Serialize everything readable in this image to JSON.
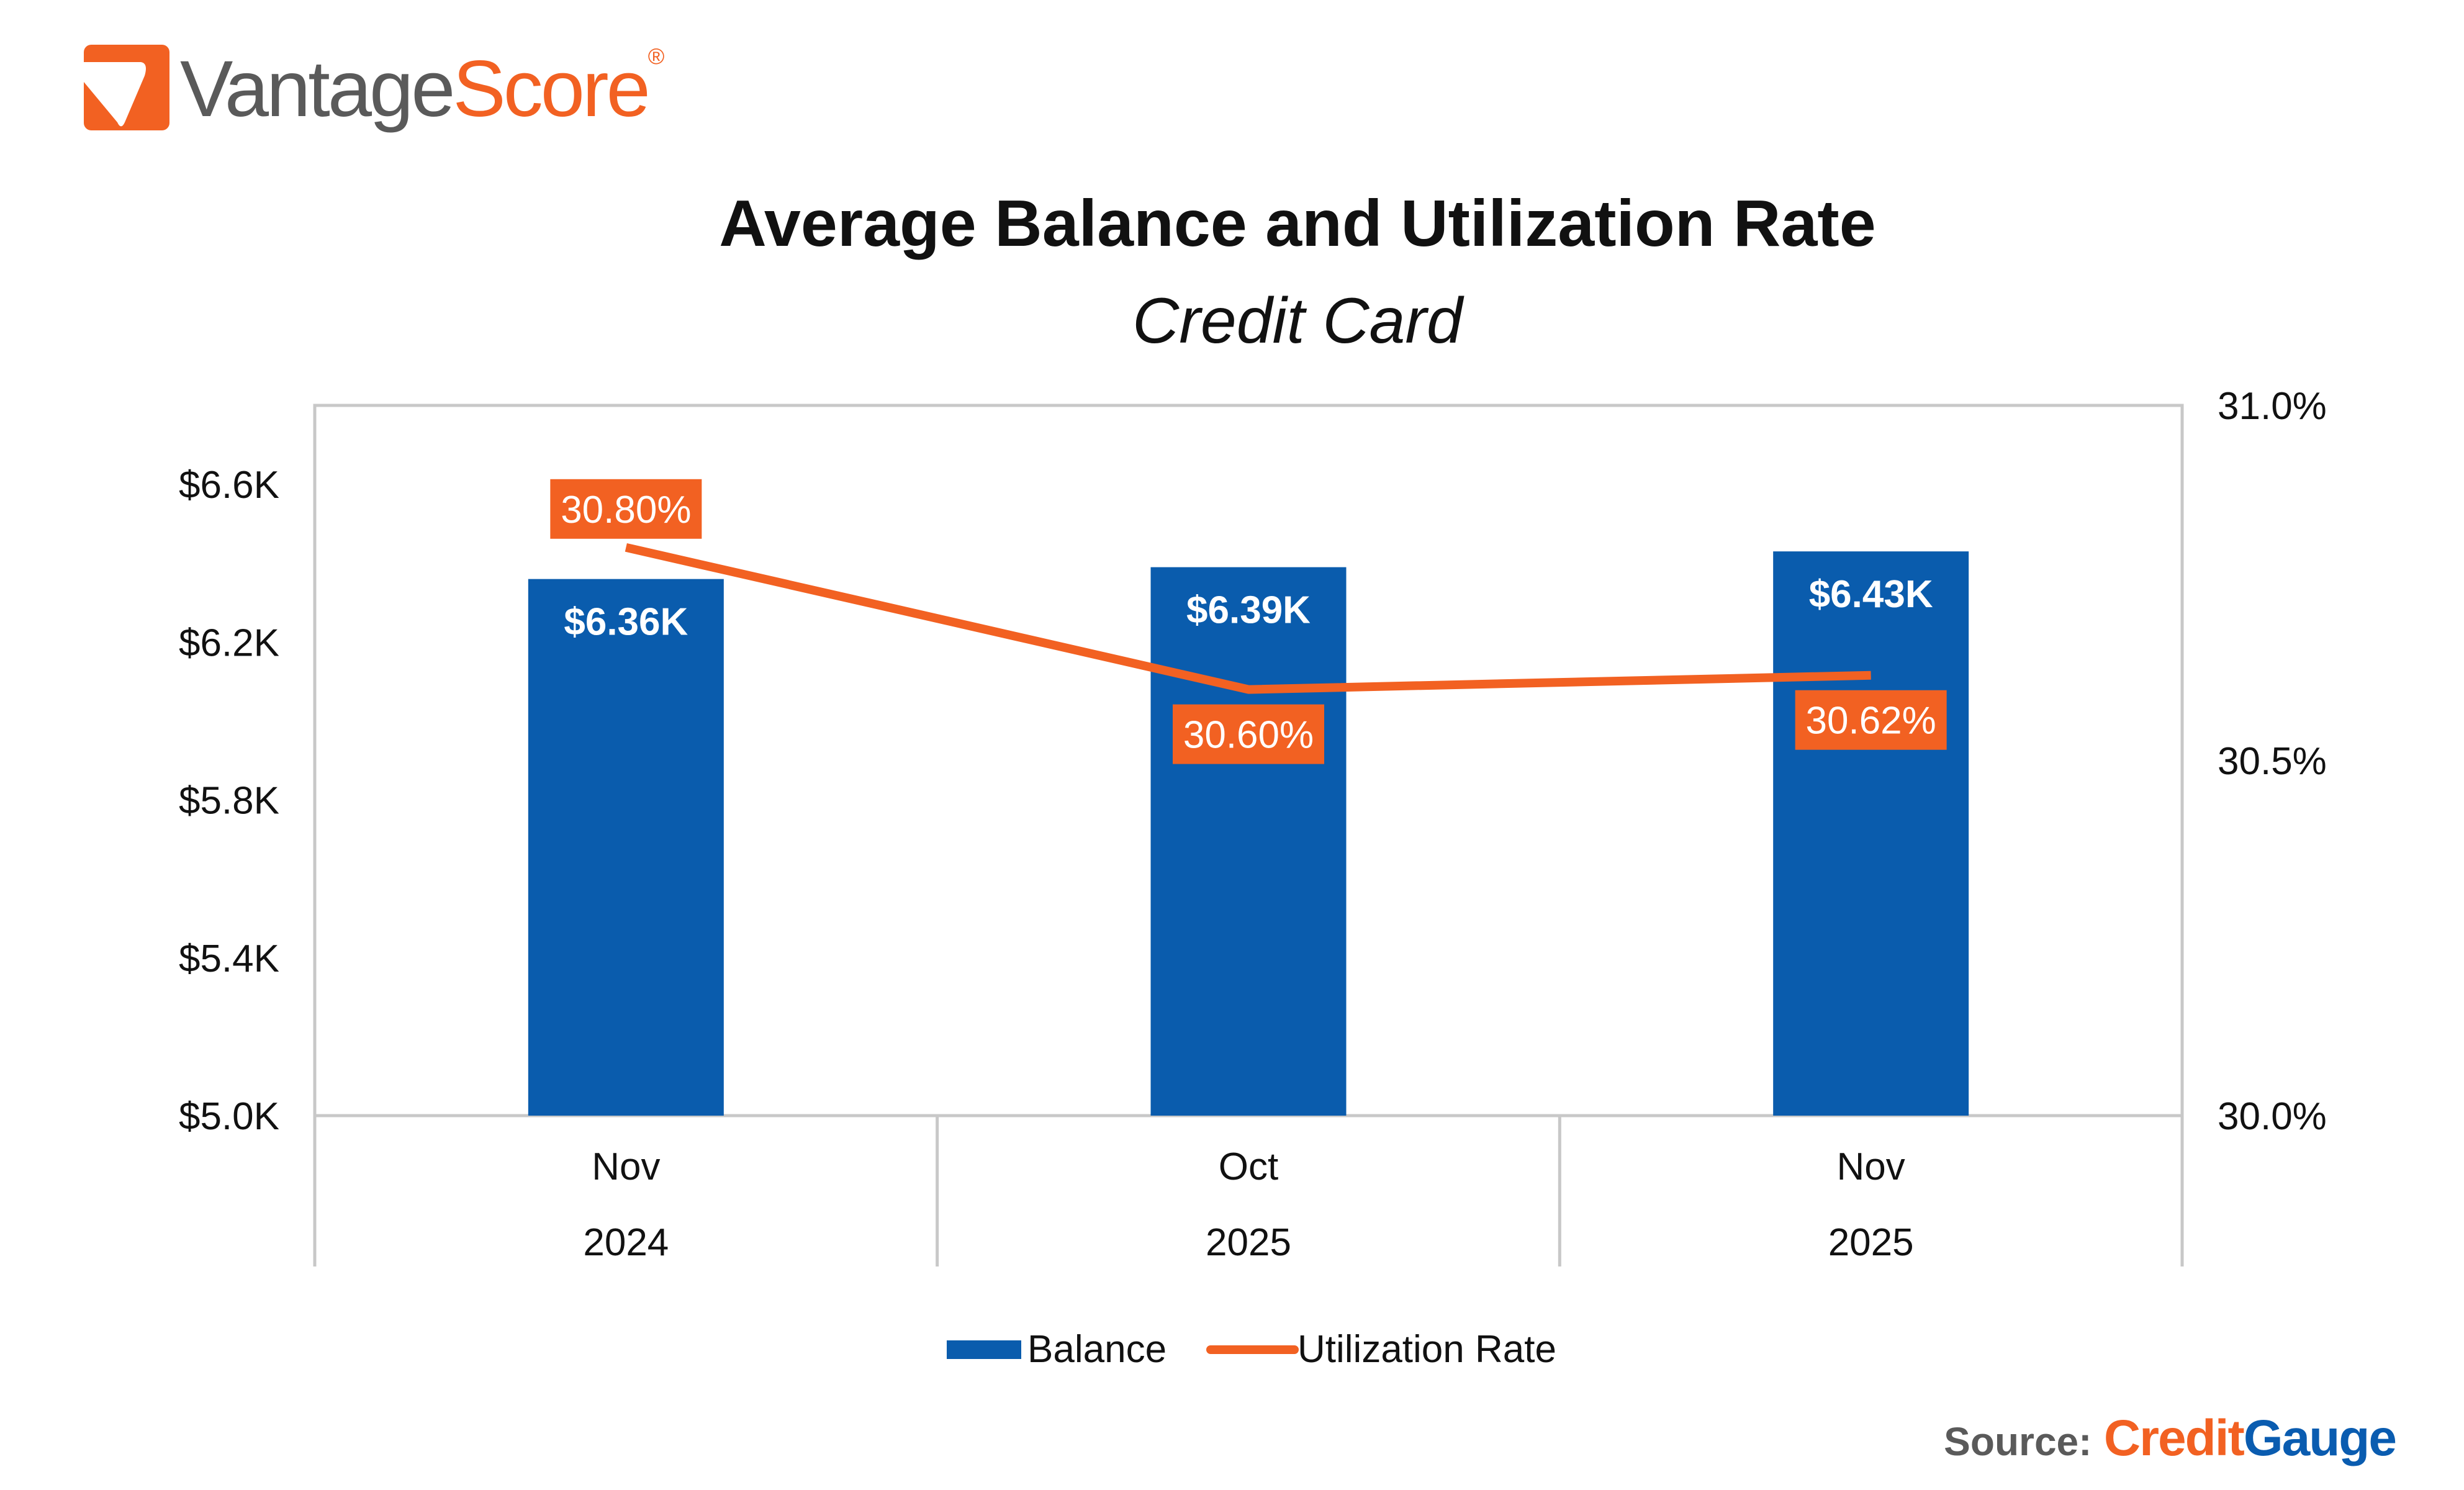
{
  "brand": {
    "logo_part1": "Vantage",
    "logo_part2": "Score",
    "registered": "®"
  },
  "source": {
    "label": "Source:",
    "brand_part1": "Credit",
    "brand_part2": "Gauge"
  },
  "colors": {
    "bar": "#0a5cad",
    "line": "#f26122",
    "axis": "#c8c8c8",
    "text": "#111111"
  },
  "chart_data": {
    "type": "bar+line",
    "title": "Average Balance and Utilization Rate",
    "subtitle": "Credit Card",
    "categories": [
      [
        "Nov",
        "2024"
      ],
      [
        "Oct",
        "2025"
      ],
      [
        "Nov",
        "2025"
      ]
    ],
    "series": [
      {
        "name": "Balance",
        "type": "bar",
        "axis": "left",
        "values": [
          6.36,
          6.39,
          6.43
        ],
        "labels": [
          "$6.36K",
          "$6.39K",
          "$6.43K"
        ]
      },
      {
        "name": "Utilization Rate",
        "type": "line",
        "axis": "right",
        "values": [
          30.8,
          30.6,
          30.62
        ],
        "labels": [
          "30.80%",
          "30.60%",
          "30.62%"
        ]
      }
    ],
    "left_axis": {
      "ylim": [
        5.0,
        6.8
      ],
      "ticks": [
        5.0,
        5.4,
        5.8,
        6.2,
        6.6
      ],
      "tick_labels": [
        "$5.0K",
        "$5.4K",
        "$5.8K",
        "$6.2K",
        "$6.6K"
      ]
    },
    "right_axis": {
      "ylim": [
        30.0,
        31.0
      ],
      "ticks": [
        30.0,
        30.5,
        31.0
      ],
      "tick_labels": [
        "30.0%",
        "30.5%",
        "31.0%"
      ]
    },
    "legend": {
      "position": "bottom",
      "entries": [
        "Balance",
        "Utilization Rate"
      ]
    },
    "grid": false
  }
}
